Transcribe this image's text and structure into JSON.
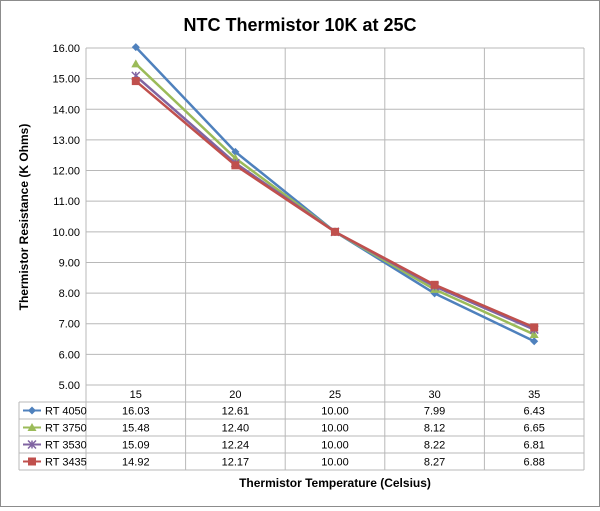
{
  "chart_data": {
    "type": "line",
    "title": "NTC Thermistor 10K at 25C",
    "xlabel": "Thermistor Temperature (Celsius)",
    "ylabel": "Thermistor Resistance (K Ohms)",
    "ylim": [
      5.0,
      16.0
    ],
    "y_ticks": [
      "5.00",
      "6.00",
      "7.00",
      "8.00",
      "9.00",
      "10.00",
      "11.00",
      "12.00",
      "13.00",
      "14.00",
      "15.00",
      "16.00"
    ],
    "categories": [
      "15",
      "20",
      "25",
      "30",
      "35"
    ],
    "grid": true,
    "legend_placement": "data-table-below",
    "series": [
      {
        "name": "RT 4050",
        "color": "#4f81bd",
        "marker": "diamond",
        "values": [
          16.03,
          12.61,
          10.0,
          7.99,
          6.43
        ],
        "labels": [
          "16.03",
          "12.61",
          "10.00",
          "7.99",
          "6.43"
        ]
      },
      {
        "name": "RT 3750",
        "color": "#9bbb59",
        "marker": "triangle",
        "values": [
          15.48,
          12.4,
          10.0,
          8.12,
          6.65
        ],
        "labels": [
          "15.48",
          "12.40",
          "10.00",
          "8.12",
          "6.65"
        ]
      },
      {
        "name": "RT 3530",
        "color": "#8064a2",
        "marker": "x",
        "values": [
          15.09,
          12.24,
          10.0,
          8.22,
          6.81
        ],
        "labels": [
          "15.09",
          "12.24",
          "10.00",
          "8.22",
          "6.81"
        ]
      },
      {
        "name": "RT 3435",
        "color": "#c0504d",
        "marker": "square",
        "values": [
          14.92,
          12.17,
          10.0,
          8.27,
          6.88
        ],
        "labels": [
          "14.92",
          "12.17",
          "10.00",
          "8.27",
          "6.88"
        ]
      }
    ]
  }
}
